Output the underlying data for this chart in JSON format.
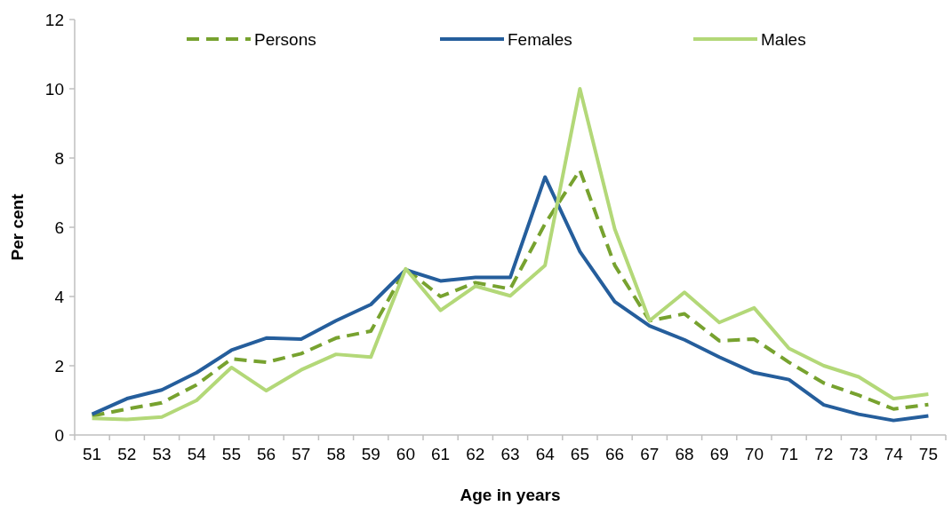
{
  "chart_data": {
    "type": "line",
    "xlabel": "Age in years",
    "ylabel": "Per cent",
    "categories": [
      "51",
      "52",
      "53",
      "54",
      "55",
      "56",
      "57",
      "58",
      "59",
      "60",
      "61",
      "62",
      "63",
      "64",
      "65",
      "66",
      "67",
      "68",
      "69",
      "70",
      "71",
      "72",
      "73",
      "74",
      "75"
    ],
    "ylim": [
      0,
      12
    ],
    "yticks": [
      0,
      2,
      4,
      6,
      8,
      10,
      12
    ],
    "legend": "top",
    "grid": false,
    "series": [
      {
        "name": "Persons",
        "color": "#77a22f",
        "line_style": "dashed",
        "values": [
          0.55,
          0.75,
          0.93,
          1.45,
          2.2,
          2.1,
          2.35,
          2.8,
          3.0,
          4.8,
          4.0,
          4.4,
          4.22,
          6.1,
          7.65,
          4.9,
          3.3,
          3.5,
          2.72,
          2.77,
          2.1,
          1.5,
          1.15,
          0.75,
          0.88
        ]
      },
      {
        "name": "Females",
        "color": "#255e9c",
        "line_style": "solid",
        "values": [
          0.6,
          1.05,
          1.3,
          1.8,
          2.45,
          2.8,
          2.77,
          3.3,
          3.77,
          4.77,
          4.45,
          4.55,
          4.55,
          7.45,
          5.3,
          3.85,
          3.15,
          2.75,
          2.25,
          1.8,
          1.6,
          0.87,
          0.6,
          0.42,
          0.55
        ]
      },
      {
        "name": "Males",
        "color": "#b3d878",
        "line_style": "solid",
        "values": [
          0.48,
          0.45,
          0.52,
          1.0,
          1.95,
          1.28,
          1.88,
          2.33,
          2.25,
          4.8,
          3.6,
          4.3,
          4.02,
          4.9,
          10.0,
          5.95,
          3.3,
          4.12,
          3.25,
          3.67,
          2.5,
          2.0,
          1.68,
          1.05,
          1.18
        ]
      }
    ]
  }
}
